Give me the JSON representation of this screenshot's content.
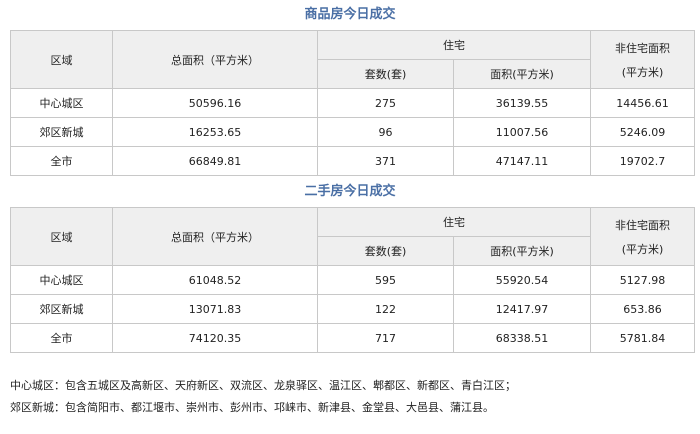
{
  "headers": {
    "region": "区域",
    "total": "总面积（平方米）",
    "residential": "住宅",
    "units": "套数(套)",
    "res_area": "面积(平方米)",
    "nonres_l1": "非住宅面积",
    "nonres_l2": "(平方米)"
  },
  "tables": [
    {
      "title": "商品房今日成交",
      "rows": [
        [
          "中心城区",
          "50596.16",
          "275",
          "36139.55",
          "14456.61"
        ],
        [
          "郊区新城",
          "16253.65",
          "96",
          "11007.56",
          "5246.09"
        ],
        [
          "全市",
          "66849.81",
          "371",
          "47147.11",
          "19702.7"
        ]
      ]
    },
    {
      "title": "二手房今日成交",
      "rows": [
        [
          "中心城区",
          "61048.52",
          "595",
          "55920.54",
          "5127.98"
        ],
        [
          "郊区新城",
          "13071.83",
          "122",
          "12417.97",
          "653.86"
        ],
        [
          "全市",
          "74120.35",
          "717",
          "68338.51",
          "5781.84"
        ]
      ]
    }
  ],
  "notes": [
    "中心城区：包含五城区及高新区、天府新区、双流区、龙泉驿区、温江区、郫都区、新都区、青白江区；",
    "郊区新城：包含简阳市、都江堰市、崇州市、彭州市、邛崃市、新津县、金堂县、大邑县、蒲江县。"
  ]
}
